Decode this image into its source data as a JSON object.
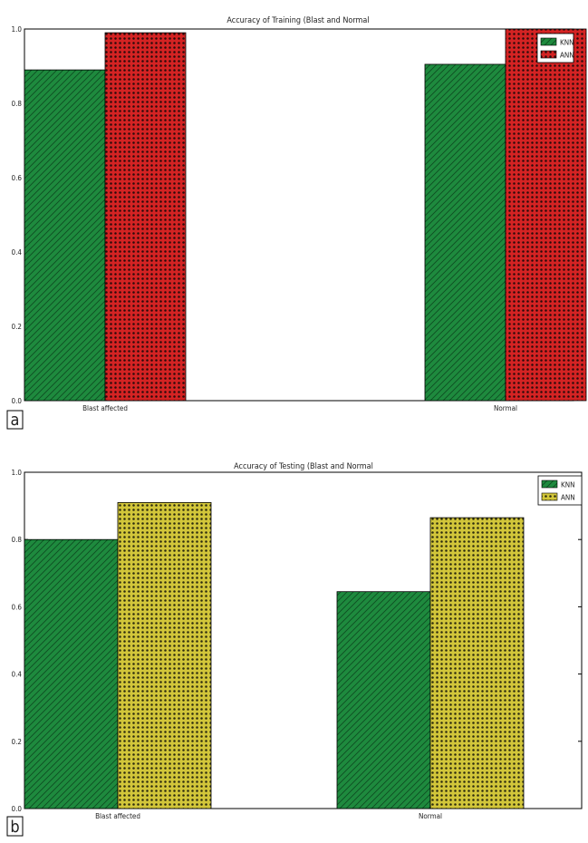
{
  "panels": [
    {
      "panel_label": "a"
    },
    {
      "panel_label": "b"
    }
  ],
  "chart_data": [
    {
      "type": "bar",
      "title": "Accuracy of Training (Blast and Normal",
      "xlabel": "",
      "ylabel": "",
      "categories": [
        "Blast affected",
        "Normal"
      ],
      "ylim": [
        0.0,
        1.0
      ],
      "yticks": [
        "0.0",
        "0.2",
        "0.4",
        "0.6",
        "0.8",
        "1.0"
      ],
      "legend_position": "top-right",
      "grid": false,
      "series": [
        {
          "name": "KNN",
          "values": [
            0.89,
            0.905
          ],
          "color": "#1e8a3e",
          "pattern": "diagonal-hatch"
        },
        {
          "name": "ANN",
          "values": [
            0.99,
            1.0
          ],
          "color": "#d42323",
          "pattern": "dots"
        }
      ]
    },
    {
      "type": "bar",
      "title": "Accuracy of Testing (Blast and Normal",
      "xlabel": "",
      "ylabel": "",
      "categories": [
        "Blast affected",
        "Normal"
      ],
      "ylim": [
        0.0,
        1.0
      ],
      "yticks": [
        "0.0",
        "0.2",
        "0.4",
        "0.6",
        "0.8",
        "1.0"
      ],
      "legend_position": "top-right",
      "grid": false,
      "series": [
        {
          "name": "KNN",
          "values": [
            0.8,
            0.645
          ],
          "color": "#1e8a3e",
          "pattern": "diagonal-hatch"
        },
        {
          "name": "ANN",
          "values": [
            0.91,
            0.865
          ],
          "color": "#d2c63a",
          "pattern": "dots"
        }
      ]
    }
  ]
}
